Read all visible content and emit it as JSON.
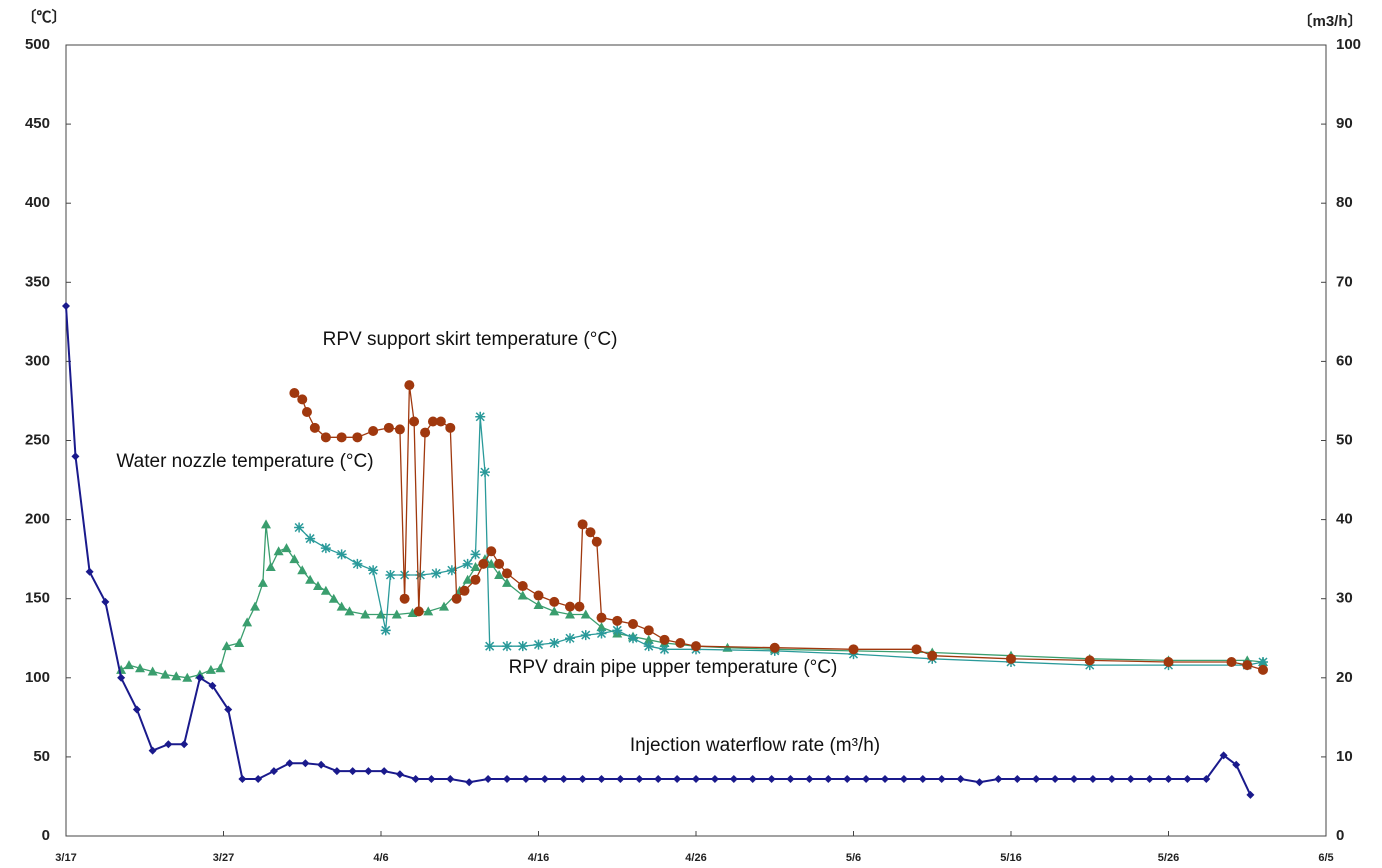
{
  "chart_data": {
    "type": "line",
    "ylabel": "〔℃〕",
    "y2label": "〔m3/h〕",
    "xlim": [
      0,
      80
    ],
    "xticks": [
      {
        "value": 0,
        "label": "3/17"
      },
      {
        "value": 10,
        "label": "3/27"
      },
      {
        "value": 20,
        "label": "4/6"
      },
      {
        "value": 30,
        "label": "4/16"
      },
      {
        "value": 40,
        "label": "4/26"
      },
      {
        "value": 50,
        "label": "5/6"
      },
      {
        "value": 60,
        "label": "5/16"
      },
      {
        "value": 70,
        "label": "5/26"
      },
      {
        "value": 80,
        "label": "6/5"
      }
    ],
    "ylim": [
      0,
      500
    ],
    "yticks": [
      0,
      50,
      100,
      150,
      200,
      250,
      300,
      350,
      400,
      450,
      500
    ],
    "y2lim": [
      0,
      100
    ],
    "y2ticks": [
      0,
      10,
      20,
      30,
      40,
      50,
      60,
      70,
      80,
      90,
      100
    ],
    "series": [
      {
        "name": "Water nozzle temperature (°C)",
        "color": "#3a9e6e",
        "marker": "triangle",
        "x": [
          3.5,
          4,
          4.7,
          5.5,
          6.3,
          7,
          7.7,
          8.5,
          9.2,
          9.8,
          10.2,
          11,
          11.5,
          12,
          12.5,
          12.7,
          13,
          13.5,
          14,
          14.5,
          15,
          15.5,
          16,
          16.5,
          17,
          17.5,
          18,
          19,
          20,
          21,
          22,
          23,
          24,
          25,
          25.5,
          26,
          26.6,
          27,
          27.5,
          28,
          29,
          30,
          31,
          32,
          33,
          34,
          35,
          36,
          37,
          38,
          40,
          42,
          45,
          50,
          55,
          60,
          65,
          70,
          75,
          76
        ],
        "values": [
          105,
          108,
          106,
          104,
          102,
          101,
          100,
          102,
          105,
          106,
          120,
          122,
          135,
          145,
          160,
          197,
          170,
          180,
          182,
          175,
          168,
          162,
          158,
          155,
          150,
          145,
          142,
          140,
          140,
          140,
          141,
          142,
          145,
          155,
          162,
          170,
          175,
          172,
          165,
          160,
          152,
          146,
          142,
          140,
          140,
          132,
          128,
          126,
          124,
          122,
          120,
          119,
          118,
          117,
          116,
          114,
          112,
          111,
          111,
          110
        ]
      },
      {
        "name": "RPV drain pipe upper temperature (°C)",
        "color": "#2a9a9a",
        "marker": "star",
        "x": [
          14.8,
          15.5,
          16.5,
          17.5,
          18.5,
          19.5,
          20.3,
          20.6,
          21.5,
          22.5,
          23.5,
          24.5,
          25.5,
          26,
          26.3,
          26.6,
          26.9,
          28,
          29,
          30,
          31,
          32,
          33,
          34,
          35,
          36,
          37,
          38,
          40,
          45,
          50,
          55,
          60,
          65,
          70,
          75,
          76
        ],
        "values": [
          195,
          188,
          182,
          178,
          172,
          168,
          130,
          165,
          165,
          165,
          166,
          168,
          172,
          178,
          265,
          230,
          120,
          120,
          120,
          121,
          122,
          125,
          127,
          128,
          130,
          125,
          120,
          118,
          118,
          117,
          115,
          112,
          110,
          108,
          108,
          108,
          110
        ]
      },
      {
        "name": "RPV support skirt temperature (°C)",
        "color": "#a0380e",
        "marker": "circle",
        "x": [
          14.5,
          15,
          15.3,
          15.8,
          16.5,
          17.5,
          18.5,
          19.5,
          20.5,
          21.2,
          21.5,
          21.8,
          22.1,
          22.4,
          22.8,
          23.3,
          23.8,
          24.4,
          24.8,
          25.3,
          26,
          26.5,
          27,
          27.5,
          28,
          29,
          30,
          31,
          32,
          32.6,
          32.8,
          33.3,
          33.7,
          34,
          35,
          36,
          37,
          38,
          39,
          40,
          45,
          50,
          54,
          55,
          60,
          65,
          70,
          74,
          75,
          76
        ],
        "values": [
          280,
          276,
          268,
          258,
          252,
          252,
          252,
          256,
          258,
          257,
          150,
          285,
          262,
          142,
          255,
          262,
          262,
          258,
          150,
          155,
          162,
          172,
          180,
          172,
          166,
          158,
          152,
          148,
          145,
          145,
          197,
          192,
          186,
          138,
          136,
          134,
          130,
          124,
          122,
          120,
          119,
          118,
          118,
          114,
          112,
          111,
          110,
          110,
          108,
          105
        ]
      },
      {
        "name": "Injection waterflow rate (m³/h)",
        "color": "#1a1a8c",
        "marker": "diamond",
        "axis": "y2",
        "x": [
          0,
          0.6,
          1.5,
          2.5,
          3.5,
          4.5,
          5.5,
          6.5,
          7.5,
          8.5,
          9.3,
          10.3,
          11.2,
          12.2,
          13.2,
          14.2,
          15.2,
          16.2,
          17.2,
          18.2,
          19.2,
          20.2,
          21.2,
          22.2,
          23.2,
          24.4,
          25.6,
          26.8,
          28,
          29.2,
          30.4,
          31.6,
          32.8,
          34,
          35.2,
          36.4,
          37.6,
          38.8,
          40,
          41.2,
          42.4,
          43.6,
          44.8,
          46,
          47.2,
          48.4,
          49.6,
          50.8,
          52,
          53.2,
          54.4,
          55.6,
          56.8,
          58,
          59.2,
          60.4,
          61.6,
          62.8,
          64,
          65.2,
          66.4,
          67.6,
          68.8,
          70,
          71.2,
          72.4,
          73.5,
          74.3,
          75.2
        ],
        "values": [
          67,
          48,
          33.4,
          29.6,
          20,
          16,
          10.8,
          11.6,
          11.6,
          20,
          19,
          16,
          7.2,
          7.2,
          8.2,
          9.2,
          9.2,
          9,
          8.2,
          8.2,
          8.2,
          8.2,
          7.8,
          7.2,
          7.2,
          7.2,
          6.8,
          7.2,
          7.2,
          7.2,
          7.2,
          7.2,
          7.2,
          7.2,
          7.2,
          7.2,
          7.2,
          7.2,
          7.2,
          7.2,
          7.2,
          7.2,
          7.2,
          7.2,
          7.2,
          7.2,
          7.2,
          7.2,
          7.2,
          7.2,
          7.2,
          7.2,
          7.2,
          6.8,
          7.2,
          7.2,
          7.2,
          7.2,
          7.2,
          7.2,
          7.2,
          7.2,
          7.2,
          7.2,
          7.2,
          7.2,
          10.2,
          9,
          5.2
        ]
      }
    ]
  }
}
